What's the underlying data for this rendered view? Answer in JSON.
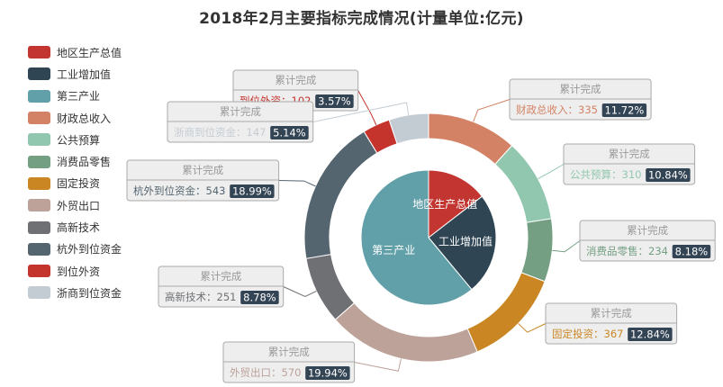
{
  "chart_data": {
    "type": "pie",
    "title": "2018年2月主要指标完成情况(计量单位:亿元)",
    "legend_position": "left",
    "inner": {
      "label_position": "inside",
      "slices": [
        {
          "name": "地区生产总值",
          "value": 2859,
          "color": "#c23531"
        },
        {
          "name": "工业增加值",
          "value": 4800,
          "color": "#2f4554"
        },
        {
          "name": "第三产业",
          "value": 12000,
          "color": "#61a0a8"
        }
      ]
    },
    "outer": {
      "label_title": "累计完成",
      "slices": [
        {
          "name": "财政总收入",
          "value": 335,
          "percent": "11.72%",
          "color": "#d48265"
        },
        {
          "name": "公共预算",
          "value": 310,
          "percent": "10.84%",
          "color": "#91c7ae"
        },
        {
          "name": "消费品零售",
          "value": 234,
          "percent": "8.18%",
          "color": "#749f83"
        },
        {
          "name": "固定投资",
          "value": 367,
          "percent": "12.84%",
          "color": "#ca8622"
        },
        {
          "name": "外贸出口",
          "value": 570,
          "percent": "19.94%",
          "color": "#bda29a"
        },
        {
          "name": "高新技术",
          "value": 251,
          "percent": "8.78%",
          "color": "#6e7074"
        },
        {
          "name": "杭外到位资金",
          "value": 543,
          "percent": "18.99%",
          "color": "#546570"
        },
        {
          "name": "到位外资",
          "value": 102,
          "percent": "3.57%",
          "color": "#c4332c"
        },
        {
          "name": "浙商到位资金",
          "value": 147,
          "percent": "5.14%",
          "color": "#c4ccd3"
        }
      ]
    },
    "legend": [
      {
        "name": "地区生产总值",
        "color": "#c23531"
      },
      {
        "name": "工业增加值",
        "color": "#2f4554"
      },
      {
        "name": "第三产业",
        "color": "#61a0a8"
      },
      {
        "name": "财政总收入",
        "color": "#d48265"
      },
      {
        "name": "公共预算",
        "color": "#91c7ae"
      },
      {
        "name": "消费品零售",
        "color": "#749f83"
      },
      {
        "name": "固定投资",
        "color": "#ca8622"
      },
      {
        "name": "外贸出口",
        "color": "#bda29a"
      },
      {
        "name": "高新技术",
        "color": "#6e7074"
      },
      {
        "name": "杭外到位资金",
        "color": "#546570"
      },
      {
        "name": "到位外资",
        "color": "#c4332c"
      },
      {
        "name": "浙商到位资金",
        "color": "#c4ccd3"
      }
    ]
  }
}
